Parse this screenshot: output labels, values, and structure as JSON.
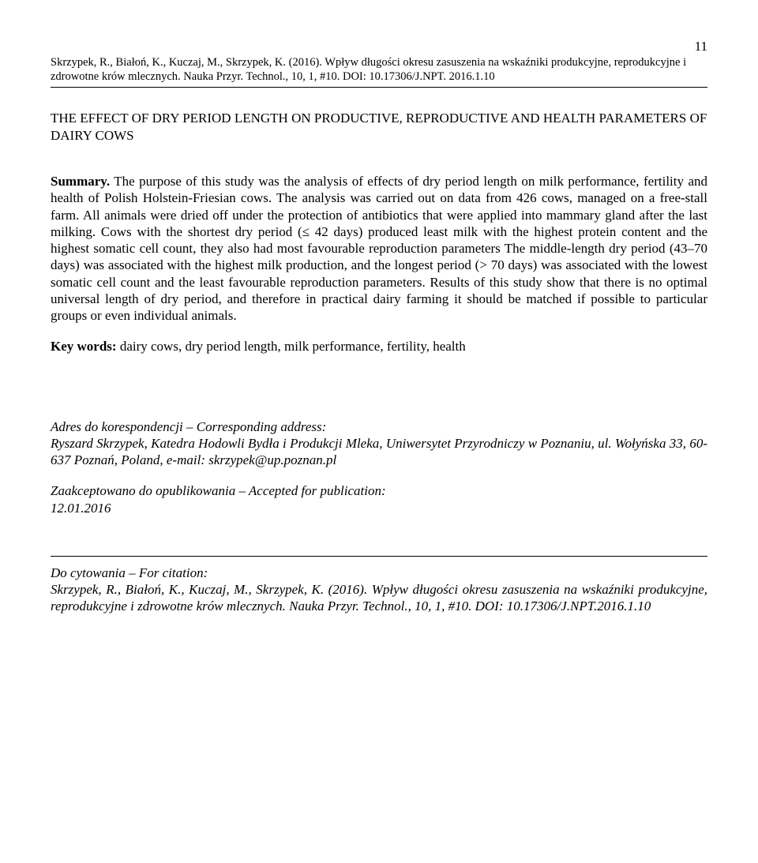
{
  "page_number": "11",
  "header_citation": "Skrzypek, R., Białoń, K., Kuczaj, M., Skrzypek, K. (2016). Wpływ długości okresu zasuszenia na wskaźniki produkcyjne, reprodukcyjne i zdrowotne krów mlecznych. Nauka Przyr. Technol., 10, 1, #10. DOI: 10.17306/J.NPT. 2016.1.10",
  "title": "THE EFFECT OF DRY PERIOD LENGTH ON PRODUCTIVE, REPRODUCTIVE AND HEALTH PARAMETERS OF DAIRY COWS",
  "summary_label": "Summary.",
  "summary_text": " The purpose of this study was the analysis of effects of dry period length on milk performance, fertility and health of Polish Holstein-Friesian cows. The analysis was carried out on data from 426 cows, managed on a free-stall farm. All animals were dried off under the protection of antibiotics that were applied into mammary gland after the last milking. Cows with the shortest dry period (≤ 42 days) produced least milk with the highest protein content and the highest somatic cell count, they also had most favourable reproduction parameters The middle-length dry period (43–70 days) was associated with the highest milk production, and the longest period (> 70 days) was associated with the lowest somatic cell count and the least favourable reproduction parameters. Results of this study show that there is no optimal universal length of dry period, and therefore in practical dairy farming it should be matched if possible to particular groups or even individual animals.",
  "keywords_label": "Key words:",
  "keywords_text": " dairy cows, dry period length, milk performance, fertility, health",
  "corr_heading": "Adres do korespondencji – Corresponding address:",
  "corr_text": "Ryszard Skrzypek, Katedra Hodowli Bydła i Produkcji Mleka, Uniwersytet Przyrodniczy w Poznaniu, ul. Wołyńska 33, 60-637 Poznań, Poland, e-mail: skrzypek@up.poznan.pl",
  "accepted_heading": "Zaakceptowano do opublikowania – Accepted for publication:",
  "accepted_date": "12.01.2016",
  "citation_heading": "Do cytowania – For citation:",
  "citation_text": "Skrzypek, R., Białoń, K., Kuczaj, M., Skrzypek, K. (2016). Wpływ długości okresu zasuszenia na wskaźniki produkcyjne, reprodukcyjne i zdrowotne krów mlecznych. Nauka Przyr. Technol., 10, 1, #10. DOI: 10.17306/J.NPT.2016.1.10"
}
